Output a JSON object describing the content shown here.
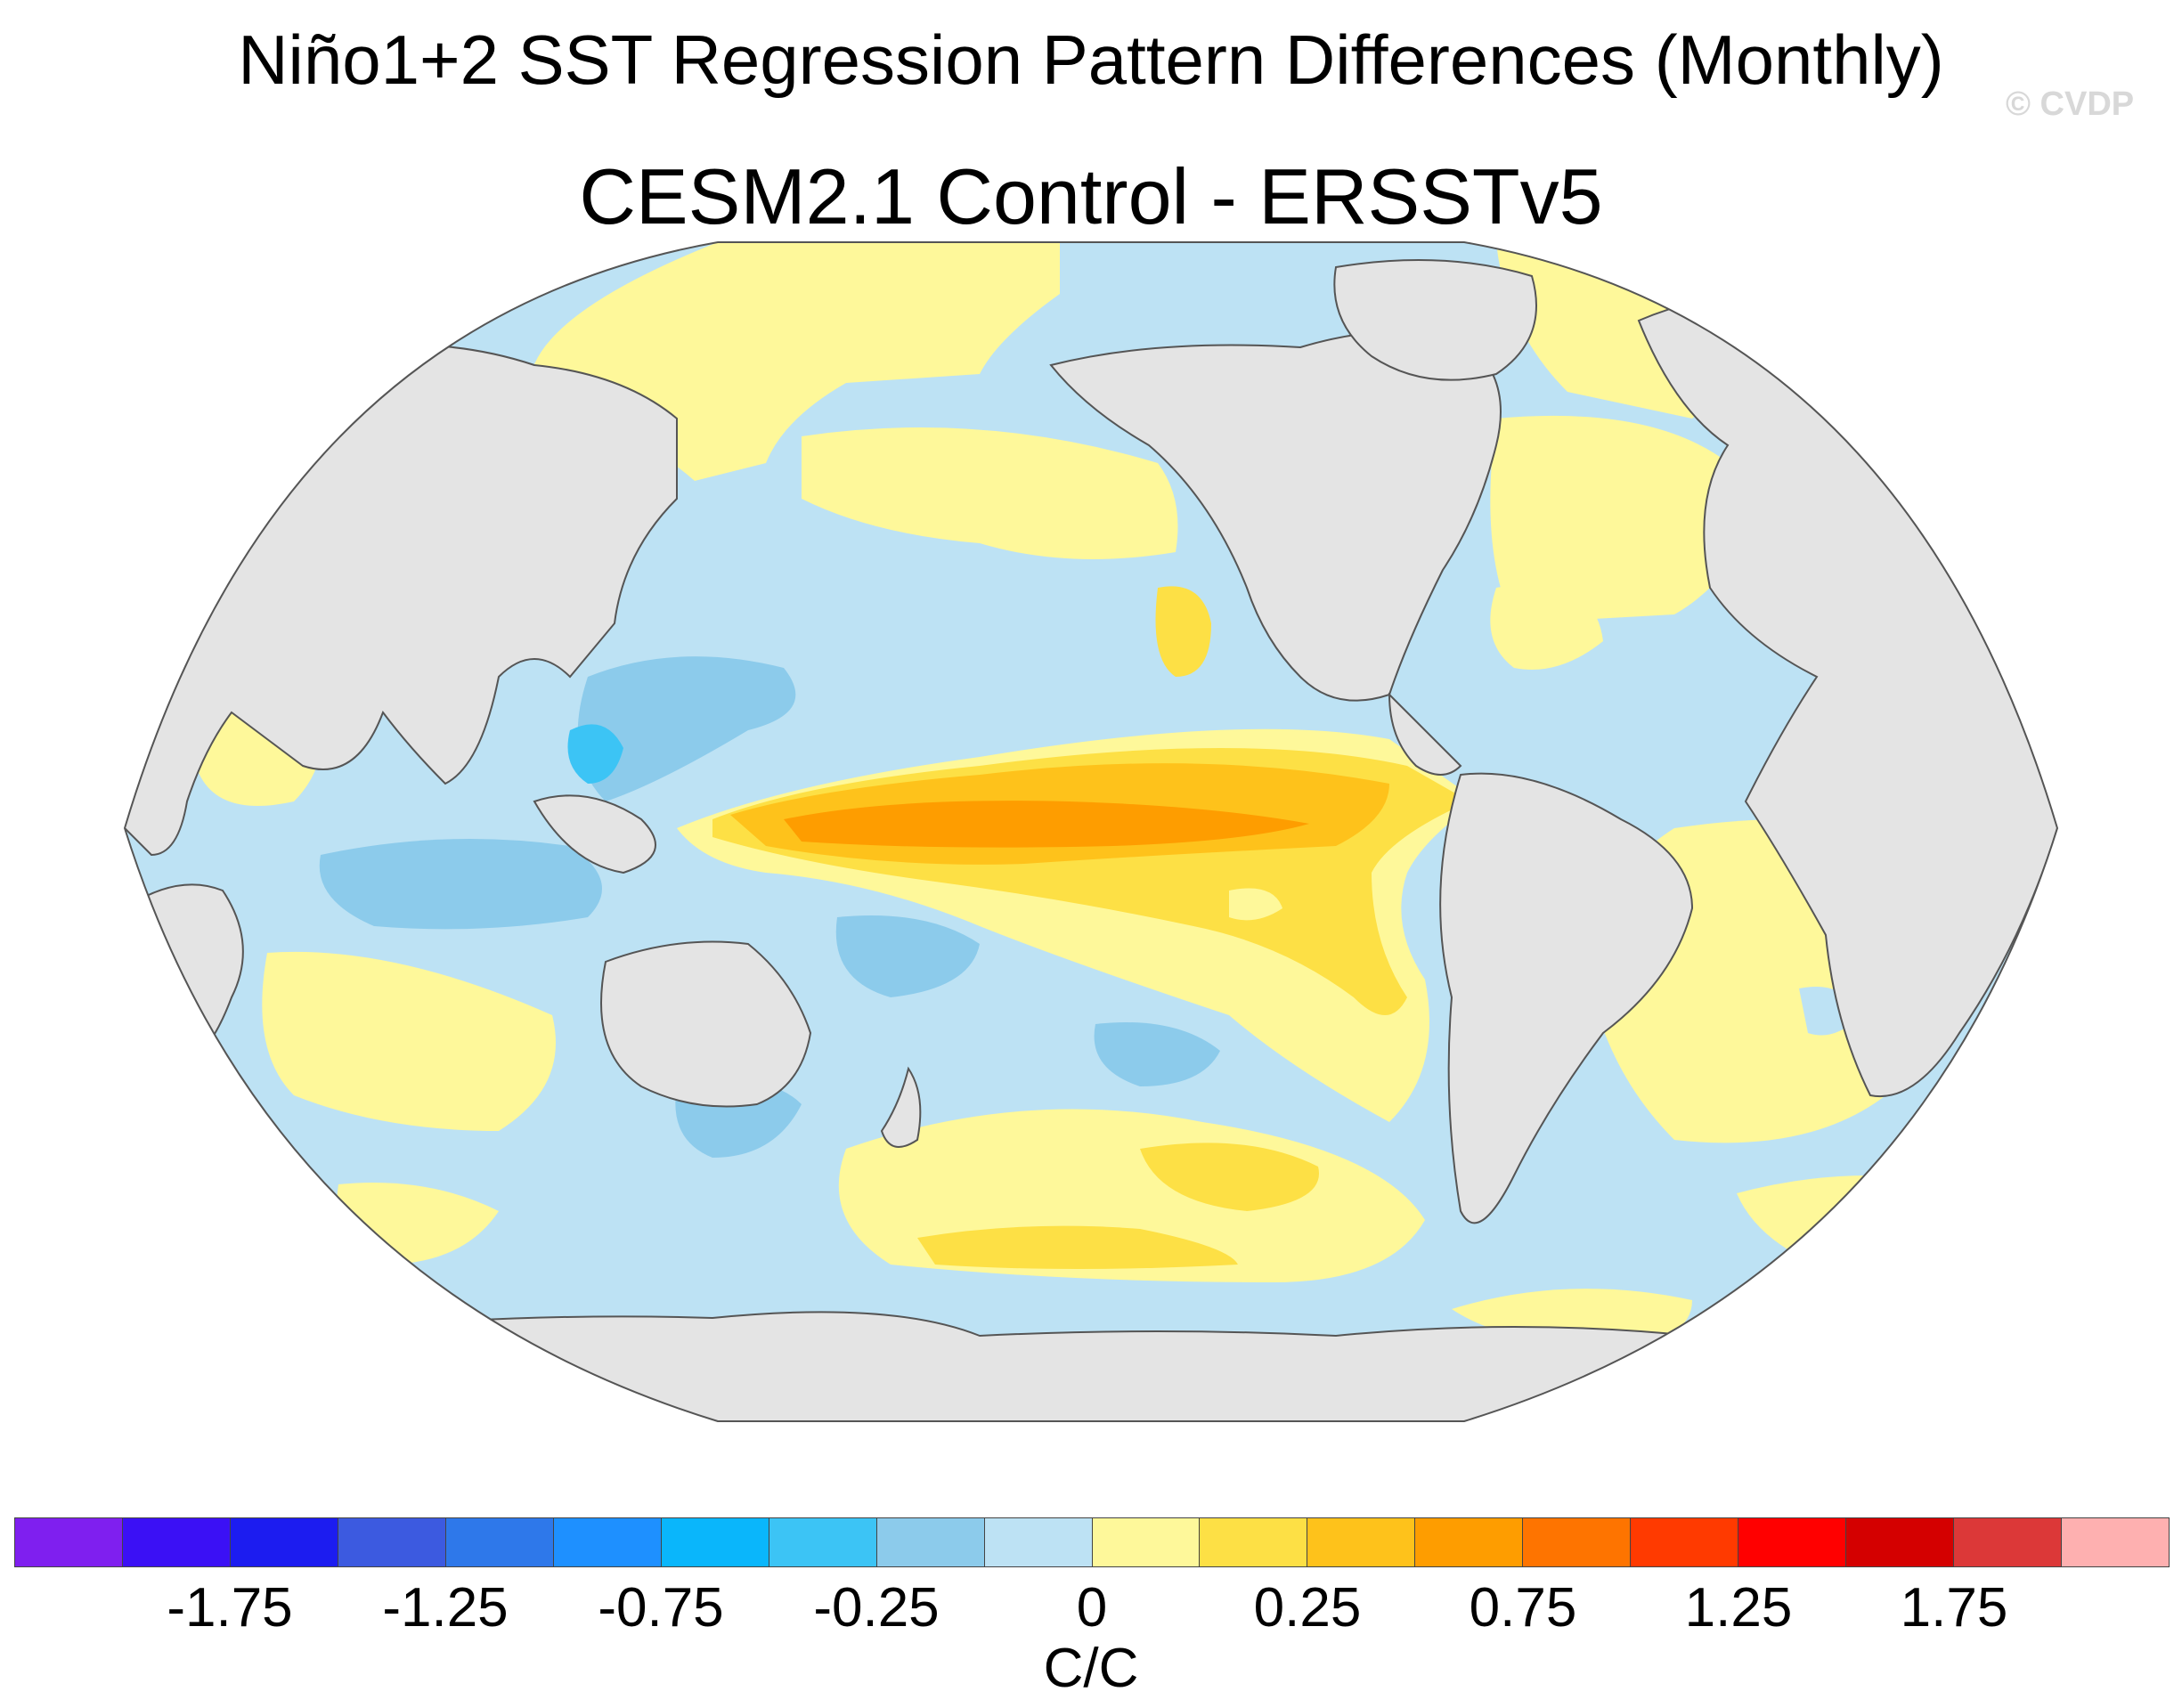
{
  "figure": {
    "title": "Niño1+2 SST Regression Pattern Differences (Monthly)",
    "subtitle": "CESM2.1 Control - ERSSTv5",
    "credit": "© CVDP"
  },
  "colorbar": {
    "colors": [
      "#7f1fef",
      "#3b10f5",
      "#1c1cf0",
      "#3c5ae0",
      "#2e78ea",
      "#1e90ff",
      "#0ab6fb",
      "#3cc4f5",
      "#8ccbeb",
      "#bde2f4",
      "#fef89a",
      "#fde045",
      "#fec21b",
      "#fe9d00",
      "#fe7400",
      "#ff3a00",
      "#ff0000",
      "#d40000",
      "#dc3838",
      "#feb0b0"
    ],
    "tick_labels": [
      "-1.75",
      "-1.25",
      "-0.75",
      "-0.25",
      "0",
      "0.25",
      "0.75",
      "1.25",
      "1.75"
    ],
    "units": "C/C"
  },
  "colors": {
    "land": "#e4e4e4",
    "coast": "#555555",
    "background": "#ffffff"
  }
}
